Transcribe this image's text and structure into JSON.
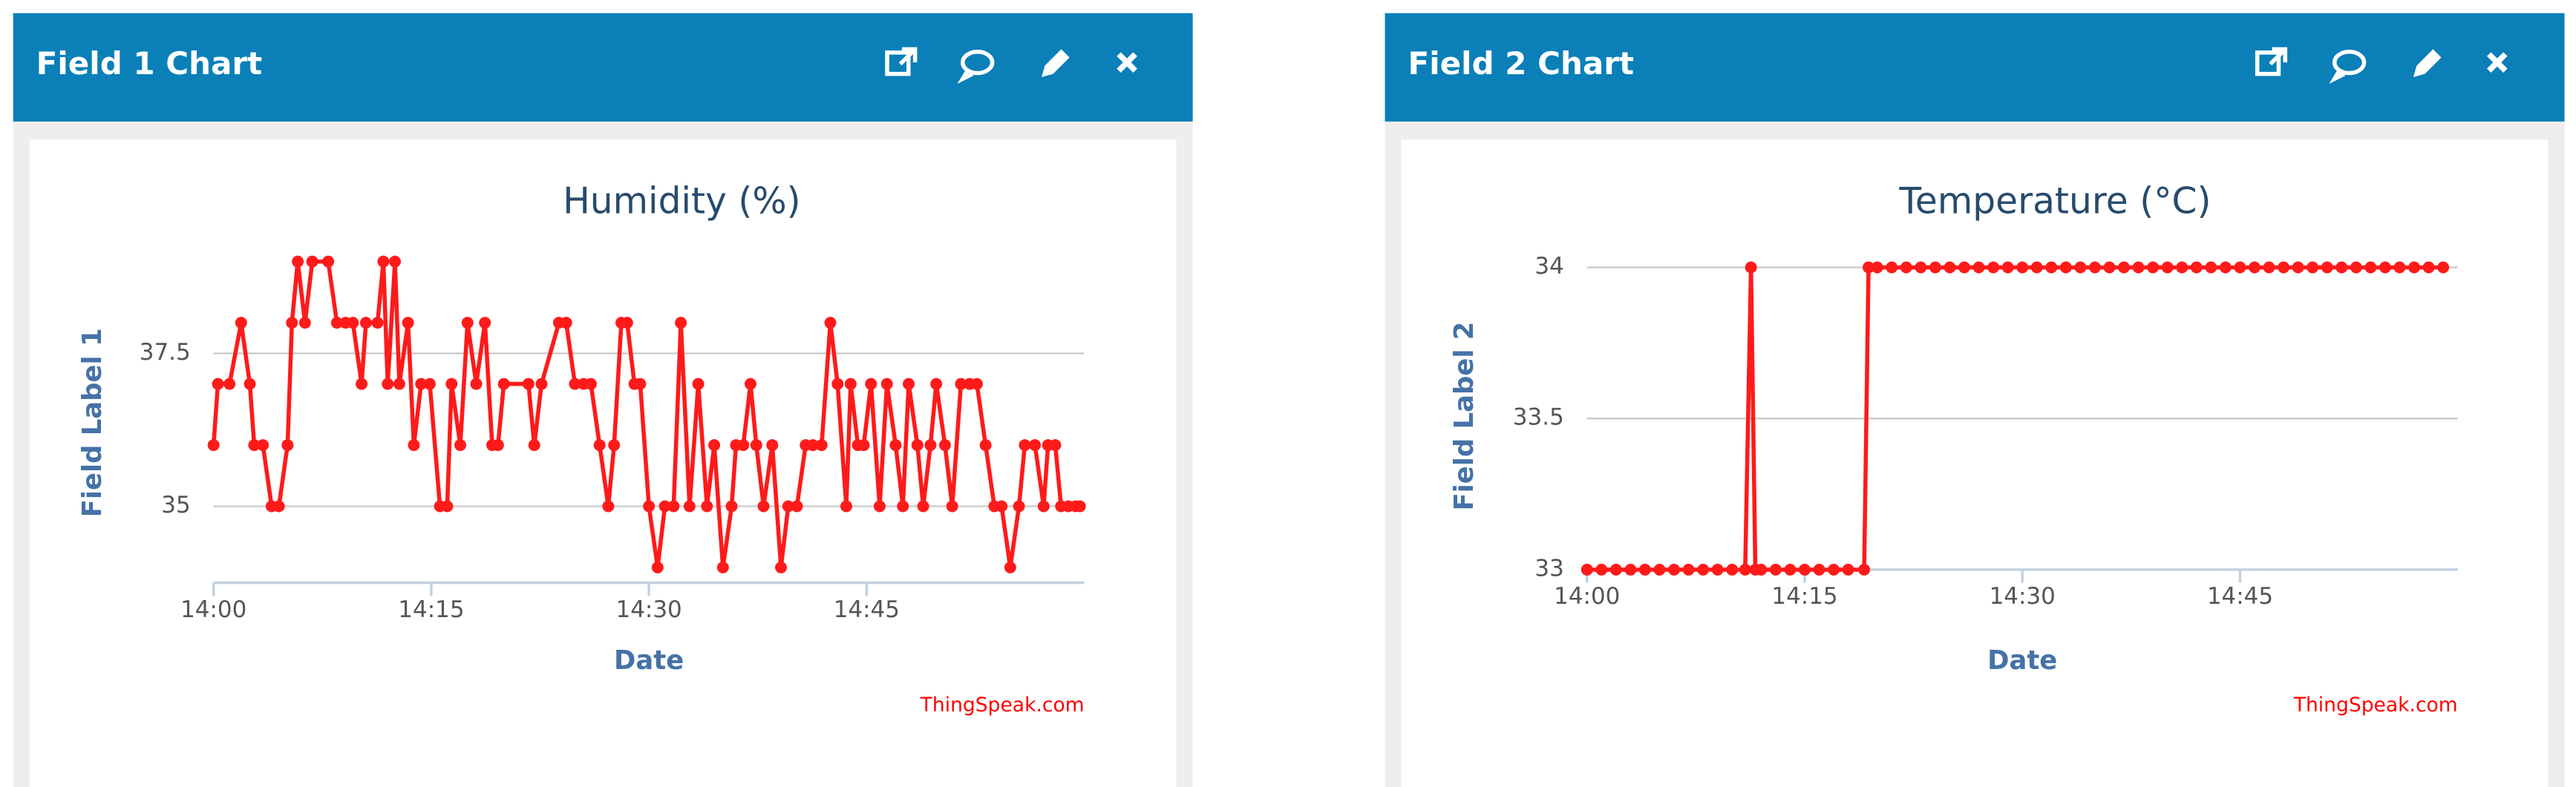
{
  "chart_data": [
    {
      "type": "line",
      "panel_title": "Field 1 Chart",
      "title": "Humidity (%)",
      "xlabel": "Date",
      "ylabel": "Field Label 1",
      "watermark": "ThingSpeak.com",
      "color": "#ff1a1a",
      "grid": true,
      "xlim": [
        0,
        60
      ],
      "xticks": [
        {
          "value": 0,
          "label": "14:00"
        },
        {
          "value": 15,
          "label": "14:15"
        },
        {
          "value": 30,
          "label": "14:30"
        },
        {
          "value": 45,
          "label": "14:45"
        }
      ],
      "ylim": [
        33.75,
        39.25
      ],
      "yticks": [
        35,
        37.5
      ],
      "x": [
        0,
        0.3,
        1.1,
        1.9,
        2.5,
        2.8,
        3.4,
        4.0,
        4.5,
        5.1,
        5.4,
        5.8,
        6.3,
        6.8,
        7.9,
        8.5,
        9.1,
        9.6,
        10.2,
        10.5,
        11.3,
        11.7,
        12.0,
        12.5,
        12.8,
        13.4,
        13.8,
        14.3,
        14.9,
        15.6,
        16.1,
        16.4,
        17.0,
        17.5,
        18.1,
        18.7,
        19.2,
        19.6,
        20.0,
        21.7,
        22.1,
        22.6,
        23.8,
        24.3,
        24.9,
        25.5,
        26.0,
        26.6,
        27.2,
        27.6,
        28.1,
        28.5,
        29.0,
        29.4,
        30.0,
        30.6,
        31.1,
        31.7,
        32.2,
        32.8,
        33.4,
        34.0,
        34.5,
        35.1,
        35.7,
        36.0,
        36.5,
        37.0,
        37.4,
        37.9,
        38.5,
        39.1,
        39.6,
        40.2,
        40.8,
        41.3,
        41.9,
        42.5,
        43.0,
        43.6,
        43.9,
        44.4,
        44.8,
        45.3,
        45.9,
        46.4,
        47.0,
        47.5,
        47.9,
        48.5,
        48.9,
        49.4,
        49.8,
        50.4,
        50.9,
        51.5,
        52.1,
        52.6,
        53.2,
        53.8,
        54.3,
        54.9,
        55.5,
        55.9,
        56.6,
        57.2,
        57.5,
        58.0,
        58.4,
        58.9,
        59.4,
        59.7
      ],
      "values": [
        36,
        37,
        37,
        38,
        37,
        36,
        36,
        35,
        35,
        36,
        38,
        39,
        38,
        39,
        39,
        38,
        38,
        38,
        37,
        38,
        38,
        39,
        37,
        39,
        37,
        38,
        36,
        37,
        37,
        35,
        35,
        37,
        36,
        38,
        37,
        38,
        36,
        36,
        37,
        37,
        36,
        37,
        38,
        38,
        37,
        37,
        37,
        36,
        35,
        36,
        38,
        38,
        37,
        37,
        35,
        34,
        35,
        35,
        38,
        35,
        37,
        35,
        36,
        34,
        35,
        36,
        36,
        37,
        36,
        35,
        36,
        34,
        35,
        35,
        36,
        36,
        36,
        38,
        37,
        35,
        37,
        36,
        36,
        37,
        35,
        37,
        36,
        35,
        37,
        36,
        35,
        36,
        37,
        36,
        35,
        37,
        37,
        37,
        36,
        35,
        35,
        34,
        35,
        36,
        36,
        35,
        36,
        36,
        35,
        35,
        35,
        35
      ]
    },
    {
      "type": "line",
      "panel_title": "Field 2 Chart",
      "title": "Temperature (°C)",
      "xlabel": "Date",
      "ylabel": "Field Label 2",
      "watermark": "ThingSpeak.com",
      "color": "#ff1a1a",
      "grid": true,
      "xlim": [
        0,
        60
      ],
      "xticks": [
        {
          "value": 0,
          "label": "14:00"
        },
        {
          "value": 15,
          "label": "14:15"
        },
        {
          "value": 30,
          "label": "14:30"
        },
        {
          "value": 45,
          "label": "14:45"
        }
      ],
      "ylim": [
        33,
        34.07
      ],
      "yticks": [
        33,
        33.5,
        34
      ],
      "x": [
        0,
        1,
        2,
        3,
        4,
        5,
        6,
        7,
        8,
        9,
        10,
        10.9,
        11.3,
        11.6,
        12,
        13,
        14,
        15,
        16,
        17,
        18,
        19.1,
        19.4,
        20,
        21,
        22,
        23,
        24,
        25,
        26,
        27,
        28,
        29,
        30,
        31,
        32,
        33,
        34,
        35,
        36,
        37,
        38,
        39,
        40,
        41,
        42,
        43,
        44,
        45,
        46,
        47,
        48,
        49,
        50,
        51,
        52,
        53,
        54,
        55,
        56,
        57,
        58,
        59
      ],
      "values": [
        33,
        33,
        33,
        33,
        33,
        33,
        33,
        33,
        33,
        33,
        33,
        33,
        34,
        33,
        33,
        33,
        33,
        33,
        33,
        33,
        33,
        33,
        34,
        34,
        34,
        34,
        34,
        34,
        34,
        34,
        34,
        34,
        34,
        34,
        34,
        34,
        34,
        34,
        34,
        34,
        34,
        34,
        34,
        34,
        34,
        34,
        34,
        34,
        34,
        34,
        34,
        34,
        34,
        34,
        34,
        34,
        34,
        34,
        34,
        34,
        34,
        34,
        34
      ]
    }
  ]
}
